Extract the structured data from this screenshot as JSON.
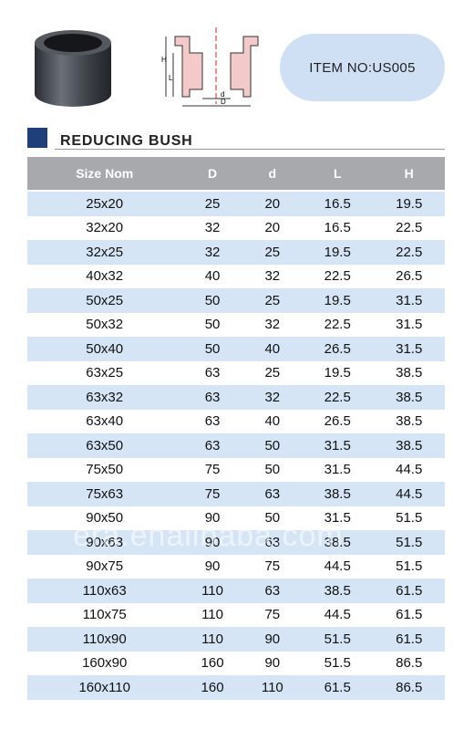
{
  "header": {
    "item_no": "ITEM NO:US005",
    "diagram_labels": [
      "H",
      "L",
      "d",
      "D"
    ]
  },
  "section": {
    "title": "REDUCING BUSH"
  },
  "table": {
    "columns": [
      "Size Nom",
      "D",
      "d",
      "L",
      "H"
    ],
    "rows": [
      [
        "25x20",
        "25",
        "20",
        "16.5",
        "19.5"
      ],
      [
        "32x20",
        "32",
        "20",
        "16.5",
        "22.5"
      ],
      [
        "32x25",
        "32",
        "25",
        "19.5",
        "22.5"
      ],
      [
        "40x32",
        "40",
        "32",
        "22.5",
        "26.5"
      ],
      [
        "50x25",
        "50",
        "25",
        "19.5",
        "31.5"
      ],
      [
        "50x32",
        "50",
        "32",
        "22.5",
        "31.5"
      ],
      [
        "50x40",
        "50",
        "40",
        "26.5",
        "31.5"
      ],
      [
        "63x25",
        "63",
        "25",
        "19.5",
        "38.5"
      ],
      [
        "63x32",
        "63",
        "32",
        "22.5",
        "38.5"
      ],
      [
        "63x40",
        "63",
        "40",
        "26.5",
        "38.5"
      ],
      [
        "63x50",
        "63",
        "50",
        "31.5",
        "38.5"
      ],
      [
        "75x50",
        "75",
        "50",
        "31.5",
        "44.5"
      ],
      [
        "75x63",
        "75",
        "63",
        "38.5",
        "44.5"
      ],
      [
        "90x50",
        "90",
        "50",
        "31.5",
        "51.5"
      ],
      [
        "90x63",
        "90",
        "63",
        "38.5",
        "51.5"
      ],
      [
        "90x75",
        "90",
        "75",
        "44.5",
        "51.5"
      ],
      [
        "110x63",
        "110",
        "63",
        "38.5",
        "61.5"
      ],
      [
        "110x75",
        "110",
        "75",
        "44.5",
        "61.5"
      ],
      [
        "110x90",
        "110",
        "90",
        "51.5",
        "61.5"
      ],
      [
        "160x90",
        "160",
        "90",
        "51.5",
        "86.5"
      ],
      [
        "160x110",
        "160",
        "110",
        "61.5",
        "86.5"
      ]
    ]
  },
  "watermark": "era.enalibaba.com"
}
